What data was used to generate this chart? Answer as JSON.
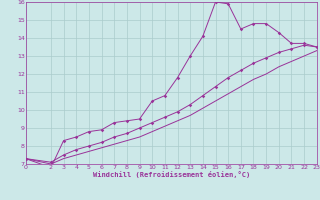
{
  "xlabel": "Windchill (Refroidissement éolien,°C)",
  "background_color": "#cce8e8",
  "grid_color": "#aacccc",
  "line_color": "#993399",
  "x_ticks": [
    0,
    2,
    3,
    4,
    5,
    6,
    7,
    8,
    9,
    10,
    11,
    12,
    13,
    14,
    15,
    16,
    17,
    18,
    19,
    20,
    21,
    22,
    23
  ],
  "y_ticks": [
    7,
    8,
    9,
    10,
    11,
    12,
    13,
    14,
    15,
    16
  ],
  "xlim": [
    0,
    23
  ],
  "ylim": [
    7,
    16
  ],
  "series1_x": [
    0,
    2,
    3,
    4,
    5,
    6,
    7,
    8,
    9,
    10,
    11,
    12,
    13,
    14,
    15,
    16,
    17,
    18,
    19,
    20,
    21,
    22,
    23
  ],
  "series1_y": [
    7.3,
    6.8,
    8.3,
    8.5,
    8.8,
    8.9,
    9.3,
    9.4,
    9.5,
    10.5,
    10.8,
    11.8,
    13.0,
    14.1,
    16.0,
    15.9,
    14.5,
    14.8,
    14.8,
    14.3,
    13.7,
    13.7,
    13.5
  ],
  "series2_x": [
    0,
    2,
    3,
    4,
    5,
    6,
    7,
    8,
    9,
    10,
    11,
    12,
    13,
    14,
    15,
    16,
    17,
    18,
    19,
    20,
    21,
    22,
    23
  ],
  "series2_y": [
    7.3,
    7.1,
    7.5,
    7.8,
    8.0,
    8.2,
    8.5,
    8.7,
    9.0,
    9.3,
    9.6,
    9.9,
    10.3,
    10.8,
    11.3,
    11.8,
    12.2,
    12.6,
    12.9,
    13.2,
    13.4,
    13.6,
    13.5
  ],
  "series3_x": [
    0,
    2,
    3,
    4,
    5,
    6,
    7,
    8,
    9,
    10,
    11,
    12,
    13,
    14,
    15,
    16,
    17,
    18,
    19,
    20,
    21,
    22,
    23
  ],
  "series3_y": [
    7.3,
    7.0,
    7.3,
    7.5,
    7.7,
    7.9,
    8.1,
    8.3,
    8.5,
    8.8,
    9.1,
    9.4,
    9.7,
    10.1,
    10.5,
    10.9,
    11.3,
    11.7,
    12.0,
    12.4,
    12.7,
    13.0,
    13.3
  ],
  "tick_fontsize": 4.5,
  "xlabel_fontsize": 5.0
}
